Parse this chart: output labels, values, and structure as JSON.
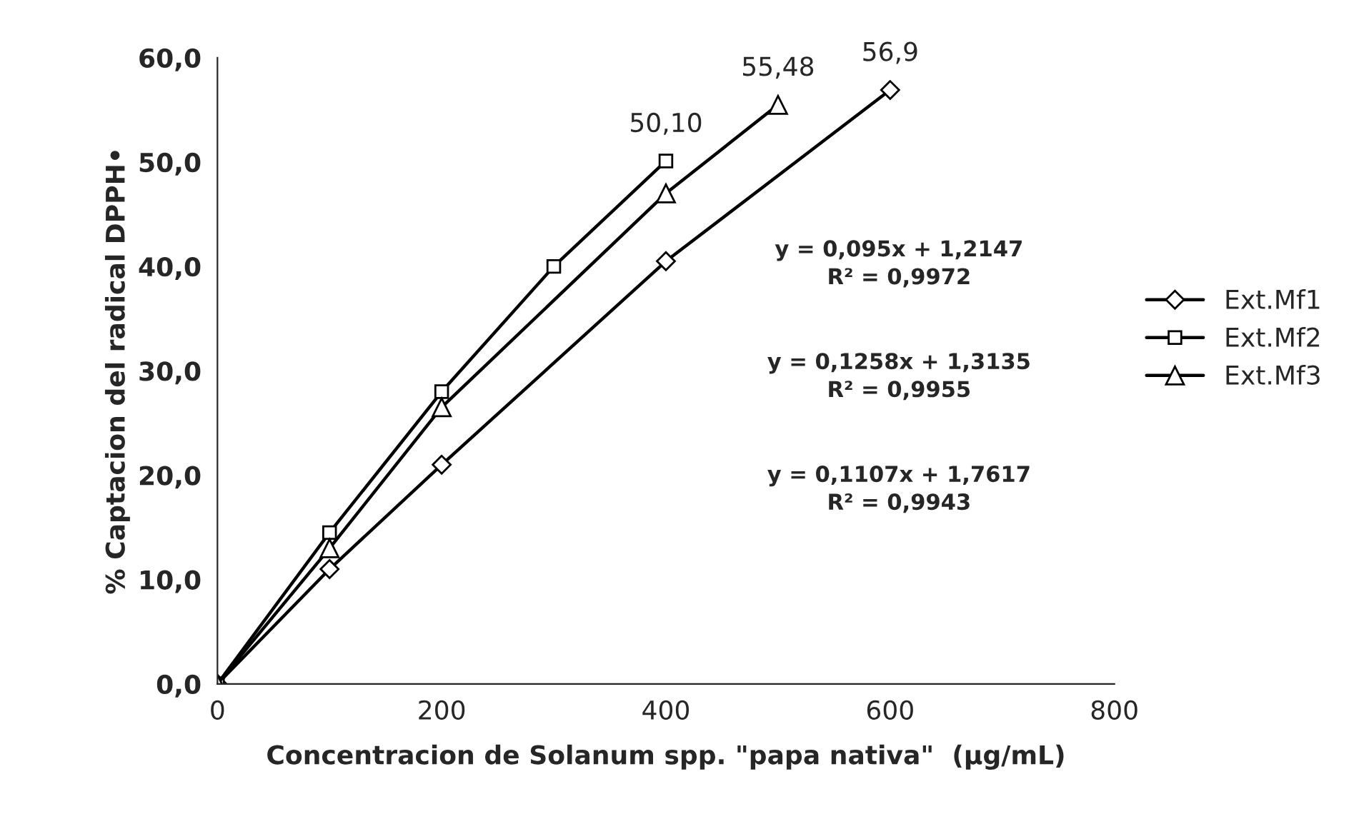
{
  "chart_data": {
    "type": "line",
    "xlabel": "Concentracion de Solanum spp. \"papa nativa\"  (µg/mL)",
    "ylabel": "% Captacion del radical DPPH•",
    "xlim": [
      0,
      800
    ],
    "xticks": [
      0,
      200,
      400,
      600,
      800
    ],
    "ylim": [
      0,
      60
    ],
    "yticks": [
      {
        "value": 0,
        "label": "0,0"
      },
      {
        "value": 10,
        "label": "10,0"
      },
      {
        "value": 20,
        "label": "20,0"
      },
      {
        "value": 30,
        "label": "30,0"
      },
      {
        "value": 40,
        "label": "40,0"
      },
      {
        "value": 50,
        "label": "50,0"
      },
      {
        "value": 60,
        "label": "60,0"
      }
    ],
    "grid": false,
    "legend": "right",
    "line_style": "solid",
    "series": [
      {
        "name": "Ext.Mf1",
        "color": "#000000",
        "marker": "diamond",
        "x": [
          0,
          100,
          200,
          400,
          600
        ],
        "values": [
          0,
          11.0,
          21.0,
          40.5,
          56.9
        ],
        "value_labels": [
          null,
          null,
          null,
          null,
          "56,9"
        ]
      },
      {
        "name": "Ext.Mf2",
        "color": "#000000",
        "marker": "square",
        "x": [
          0,
          100,
          200,
          300,
          400
        ],
        "values": [
          0,
          14.5,
          28.0,
          40.0,
          50.1
        ],
        "value_labels": [
          null,
          null,
          null,
          null,
          "50,10"
        ]
      },
      {
        "name": "Ext.Mf3",
        "color": "#000000",
        "marker": "triangle",
        "x": [
          0,
          100,
          200,
          400,
          500
        ],
        "values": [
          0,
          13.0,
          26.5,
          47.0,
          55.48
        ],
        "value_labels": [
          null,
          null,
          null,
          null,
          "55,48"
        ]
      }
    ],
    "annotations": [
      "y = 0,095x + 1,2147\nR² = 0,9972",
      "y = 0,1258x + 1,3135\nR² = 0,9955",
      "y = 0,1107x + 1,7617\nR² = 0,9943"
    ]
  }
}
